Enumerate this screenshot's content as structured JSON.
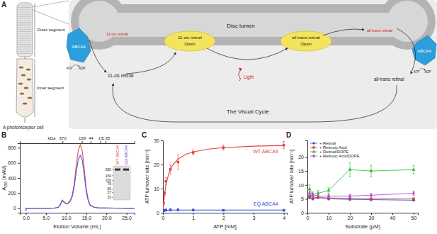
{
  "chart_data": [
    {
      "type": "line",
      "title": "B",
      "xlabel": "Elution Volume (mL)",
      "ylabel": "A280 (mAU)",
      "x": [
        0,
        0.1,
        0.5,
        2,
        4,
        6,
        7,
        8,
        8.5,
        9,
        9.5,
        10,
        10.5,
        11,
        11.5,
        12,
        12.5,
        13,
        13.5,
        14,
        14.5,
        15,
        15.5,
        16,
        17,
        18,
        20,
        22,
        25,
        27
      ],
      "series": [
        {
          "name": "WT ABCA4",
          "color": "#e8474a",
          "values": [
            -35,
            0,
            0,
            0,
            0,
            0,
            1,
            10,
            40,
            110,
            85,
            60,
            70,
            100,
            170,
            320,
            560,
            760,
            840,
            760,
            520,
            260,
            110,
            40,
            12,
            5,
            2,
            1,
            0,
            0
          ]
        },
        {
          "name": "EQ ABCA4",
          "color": "#5454d6",
          "values": [
            -35,
            0,
            0,
            0,
            0,
            0,
            1,
            10,
            38,
            100,
            78,
            55,
            62,
            90,
            150,
            280,
            470,
            640,
            700,
            640,
            440,
            220,
            95,
            35,
            10,
            4,
            2,
            1,
            0,
            0
          ]
        }
      ],
      "xlim": [
        -1.5,
        27
      ],
      "xticks": [
        {
          "value": 0,
          "label": "0.0"
        },
        {
          "value": 5,
          "label": "5.0"
        },
        {
          "value": 10,
          "label": "10.0"
        },
        {
          "value": 15,
          "label": "15.0"
        },
        {
          "value": 20,
          "label": "20.0"
        },
        {
          "value": 25,
          "label": "25.0"
        }
      ],
      "ylim": [
        -60,
        860
      ],
      "yticks": [
        0,
        200,
        400,
        600,
        800
      ],
      "x2label": "kDa",
      "x2ticks": [
        {
          "value": 9.1,
          "label": "670"
        },
        {
          "value": 13.9,
          "label": "158"
        },
        {
          "value": 16.1,
          "label": "44"
        },
        {
          "value": 18.5,
          "label": "17"
        },
        {
          "value": 19.8,
          "label": "1.35"
        }
      ],
      "inset": {
        "ladder": [
          250,
          150,
          100,
          75,
          50,
          37,
          25
        ],
        "bands": [
          250,
          250
        ]
      }
    },
    {
      "type": "scatter",
      "title": "C",
      "xlabel": "ATP [mM]",
      "ylabel": "ATP turnover rate [min⁻¹]",
      "series": [
        {
          "name": "WT ABCA4",
          "color": "#e8403a",
          "marker": "square",
          "x": [
            0.02,
            0.05,
            0.1,
            0.25,
            0.5,
            1,
            2,
            4
          ],
          "values": [
            4,
            8,
            13,
            18,
            21,
            25,
            27,
            28
          ],
          "errors": [
            0.5,
            1,
            1.5,
            2,
            3,
            1,
            1,
            1.5
          ],
          "fit": {
            "x": [
              0,
              0.05,
              0.1,
              0.2,
              0.3,
              0.5,
              0.75,
              1,
              1.5,
              2,
              3,
              4
            ],
            "values": [
              0,
              7.3,
              11.6,
              16.6,
              19.3,
              22.3,
              24.2,
              25.2,
              26.4,
              27,
              27.6,
              27.9
            ]
          }
        },
        {
          "name": "EQ ABCA4",
          "color": "#3450d8",
          "marker": "square",
          "x": [
            0.02,
            0.05,
            0.1,
            0.25,
            0.5,
            1,
            2,
            4
          ],
          "values": [
            0.8,
            1.0,
            1.1,
            1.2,
            1.2,
            1.1,
            1.0,
            1.0
          ],
          "errors": [
            0.3,
            0.3,
            0.3,
            0.4,
            0.3,
            0.3,
            0.3,
            0.3
          ],
          "fit": {
            "x": [
              0,
              0.05,
              0.1,
              0.25,
              0.5,
              1,
              2,
              4
            ],
            "values": [
              0,
              0.9,
              1.0,
              1.1,
              1.1,
              1.1,
              1.1,
              1.1
            ]
          }
        }
      ],
      "xlim": [
        0,
        4.1
      ],
      "xticks": [
        0,
        1,
        2,
        3,
        4
      ],
      "ylim": [
        0,
        30
      ],
      "yticks": [
        0,
        10,
        20,
        30
      ]
    },
    {
      "type": "line",
      "title": "D",
      "xlabel": "Substrate (μM)",
      "ylabel": "ATP turnover rate [min⁻¹]",
      "x": [
        1,
        2.5,
        5,
        10,
        20,
        30,
        50
      ],
      "series": [
        {
          "name": "+ Retinal",
          "color": "#2f5fd0",
          "marker": "circle",
          "values": [
            5.5,
            5,
            5.5,
            5,
            4.8,
            4.7,
            4.5
          ],
          "errors": [
            0.5,
            0.4,
            0.4,
            0.4,
            0.3,
            0.3,
            0.3
          ]
        },
        {
          "name": "+ Retinoic Acid",
          "color": "#e03d35",
          "marker": "square",
          "values": [
            6,
            5.5,
            5.5,
            5.3,
            5.2,
            5,
            5
          ],
          "errors": [
            0.5,
            0.5,
            0.4,
            0.4,
            0.4,
            0.3,
            0.3
          ]
        },
        {
          "name": "+ Retinal/DOPE",
          "color": "#3cbf3c",
          "marker": "triangle",
          "values": [
            8.5,
            6.5,
            7,
            8,
            15.5,
            15,
            15.5
          ],
          "errors": [
            1.5,
            1,
            1,
            1,
            2.5,
            2,
            1.5
          ]
        },
        {
          "name": "+ Retinoic Acid/DOPE",
          "color": "#b04ee0",
          "marker": "diamond",
          "values": [
            7,
            6.5,
            6,
            6,
            6,
            6.3,
            7
          ],
          "errors": [
            0.8,
            0.6,
            0.6,
            0.6,
            0.6,
            0.6,
            0.8
          ]
        }
      ],
      "xlim": [
        0,
        52
      ],
      "xticks": [
        0,
        10,
        20,
        30,
        40,
        50
      ],
      "ylim": [
        0,
        26
      ],
      "yticks": [
        0,
        5,
        10,
        15,
        20
      ],
      "legend": "upper left"
    }
  ],
  "diagram": {
    "label": "A",
    "cell": {
      "title": "A photoreceptor cell",
      "outer": "Outer segment",
      "inner": "Inner segment"
    },
    "lumen": "Disc lumen",
    "transporters": [
      {
        "name": "ABCA4",
        "in": "ATP",
        "out": "ADP"
      },
      {
        "name": "ABCA4",
        "in": "ATP",
        "out": "ADP"
      }
    ],
    "opsins": [
      {
        "retinal": "11-cis retinal",
        "protein": "Opsin"
      },
      {
        "retinal": "all-trans retinal",
        "protein": "Opsin"
      }
    ],
    "retinals": [
      "11-cis retinal",
      "11-cis retinal",
      "all-trans retinal",
      "all-trans retinal"
    ],
    "light": "Light",
    "cycle": "The Visual Cycle"
  }
}
